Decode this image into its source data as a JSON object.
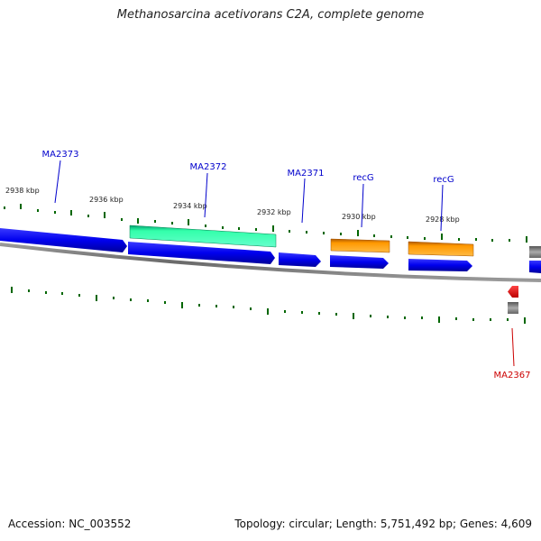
{
  "title": "Methanosarcina acetivorans C2A, complete genome",
  "footer": {
    "accession": "Accession: NC_003552",
    "summary": "Topology: circular; Length: 5,751,492 bp; Genes: 4,609"
  },
  "ticks": [
    {
      "label": "2938 kbp"
    },
    {
      "label": "2936 kbp"
    },
    {
      "label": "2934 kbp"
    },
    {
      "label": "2932 kbp"
    },
    {
      "label": "2930 kbp"
    },
    {
      "label": "2928 kbp"
    }
  ],
  "gene_labels": [
    {
      "name": "MA2373",
      "color": "#0000cc"
    },
    {
      "name": "MA2372",
      "color": "#0000cc"
    },
    {
      "name": "MA2371",
      "color": "#0000cc"
    },
    {
      "name": "recG",
      "color": "#0000cc"
    },
    {
      "name": "recG",
      "color": "#0000cc"
    },
    {
      "name": "MA2367",
      "color": "#cc0000"
    }
  ],
  "colors": {
    "cds_blue": "#0000ee",
    "highlight_green": "#33ffaa",
    "gene_orange": "#ff9900",
    "tick_green": "#006600",
    "backbone_gray": "#808080",
    "reverse_red": "#ee0000"
  }
}
